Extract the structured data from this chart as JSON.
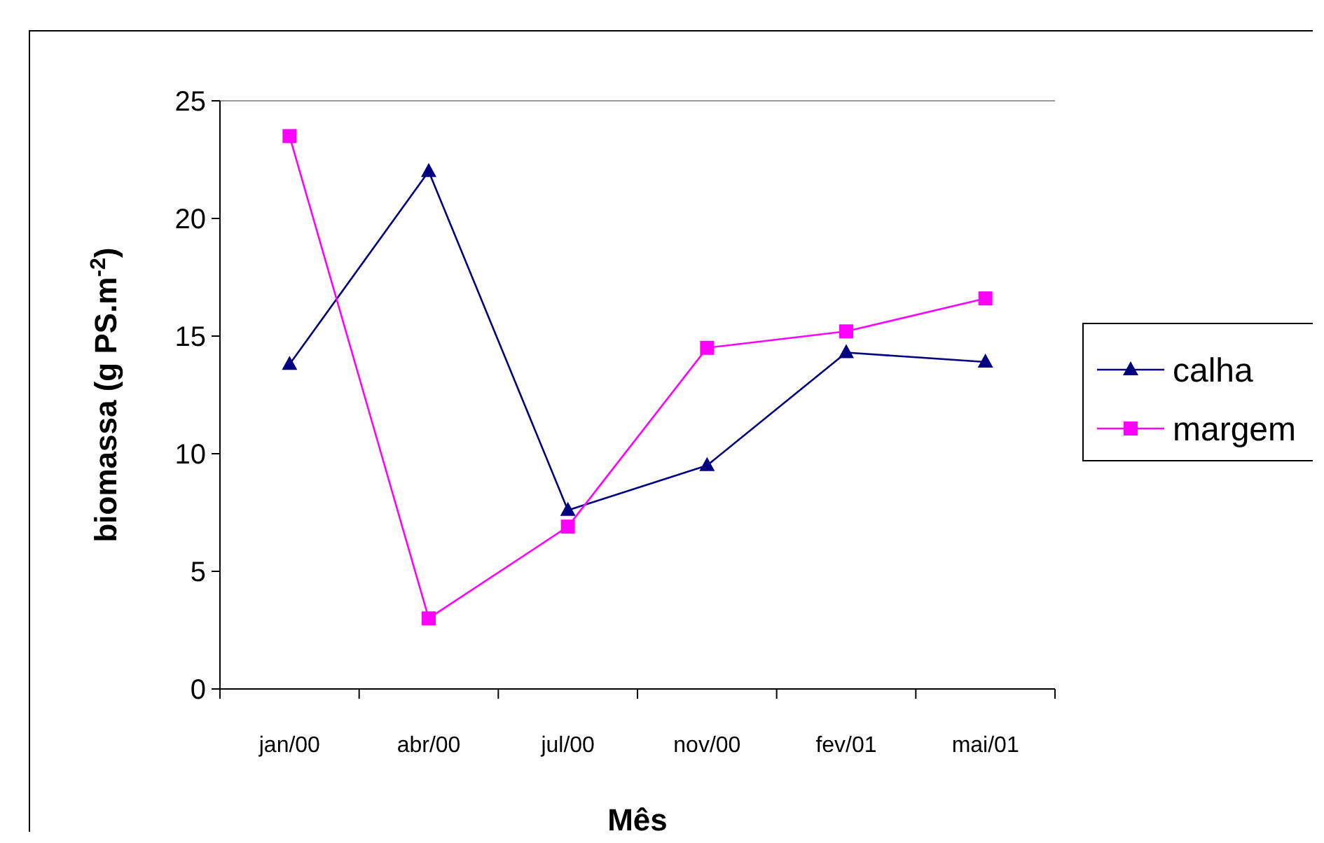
{
  "chart_data": {
    "type": "line",
    "xlabel": "Mês",
    "ylabel": "biomassa (g PS.m$^{-2}$)",
    "categories": [
      "jan/00",
      "abr/00",
      "jul/00",
      "nov/00",
      "fev/01",
      "mai/01"
    ],
    "series": [
      {
        "name": "calha",
        "color": "#000080",
        "marker": "triangle",
        "values": [
          13.8,
          22,
          7.6,
          9.5,
          14.3,
          13.9
        ]
      },
      {
        "name": "margem",
        "color": "#ff00ff",
        "marker": "square",
        "values": [
          23.5,
          3,
          6.9,
          14.5,
          15.2,
          16.6
        ]
      }
    ],
    "ylim": [
      0,
      25
    ],
    "yticks": [
      0,
      5,
      10,
      15,
      20,
      25
    ],
    "grid": false,
    "legend": "right",
    "line_style": "solid"
  }
}
